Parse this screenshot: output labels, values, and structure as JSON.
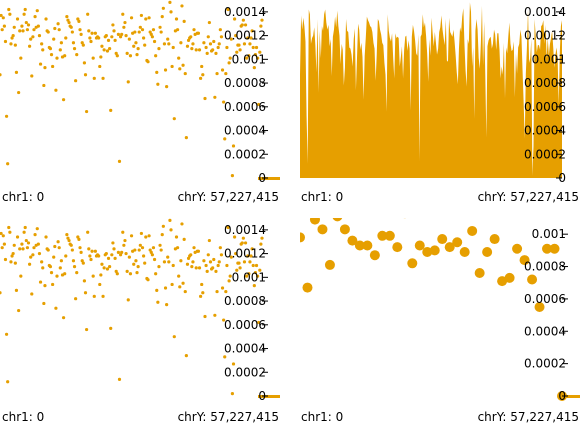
{
  "color": "#e69f00",
  "panels": [
    {
      "id": "top-left",
      "xlabel_left": "chr1: 0",
      "xlabel_right": "chrY: 57,227,415",
      "chart_data": {
        "type": "scatter",
        "marker": "small-dot",
        "ylim": [
          0,
          0.0015
        ],
        "yticks": [
          0,
          0.0002,
          0.0004,
          0.0006,
          0.0008,
          0.001,
          0.0012,
          0.0014
        ],
        "ytick_labels": [
          "0",
          "0.0002",
          "0.0004",
          "0.0006",
          "0.0008",
          "0.001",
          "0.0012",
          "0.0014"
        ],
        "values": [
          0.00087,
          0.00137,
          0.00125,
          0.00135,
          0.00128,
          0.00115,
          0.00052,
          0.00012,
          0.00142,
          0.00138,
          0.00113,
          0.00118,
          0.0012,
          0.00127,
          0.00112,
          0.00089,
          0.00134,
          0.00072,
          0.00124,
          0.00101,
          0.00128,
          0.00124,
          0.00138,
          0.00142,
          0.00131,
          0.00125,
          0.00129,
          0.00111,
          0.00117,
          0.00086,
          0.00119,
          0.00125,
          0.00136,
          0.00127,
          0.00141,
          0.00128,
          0.0012,
          0.00096,
          0.00113,
          0.00108,
          0.00078,
          0.00093,
          0.00134,
          0.00124,
          0.00123,
          0.0011,
          0.00109,
          0.00104,
          0.00094,
          0.00117,
          0.00126,
          0.00074,
          0.00101,
          0.0013,
          0.00125,
          0.00108,
          0.00114,
          0.00102,
          0.00066,
          0.00103,
          0.00118,
          0.00136,
          0.00133,
          0.00131,
          0.00128,
          0.00127,
          0.00123,
          0.00114,
          0.00109,
          0.00082,
          0.00104,
          0.00134,
          0.00132,
          0.00125,
          0.00121,
          0.00114,
          0.00112,
          0.00097,
          0.00087,
          0.00056,
          0.00138,
          0.00124,
          0.00118,
          0.00115,
          0.00122,
          0.00101,
          0.00084,
          0.00122,
          0.00118,
          0.00119,
          0.00118,
          0.00094,
          0.00102,
          0.00111,
          0.00084,
          0.00108,
          0.00119,
          0.0012,
          0.00107,
          0.00116,
          0.00109,
          0.00057,
          0.00119,
          0.00129,
          0.00124,
          0.00116,
          0.00105,
          0.00103,
          0.00121,
          0.00014,
          0.00119,
          0.00121,
          0.00138,
          0.00127,
          0.00131,
          0.0012,
          0.00105,
          0.00081,
          0.00117,
          0.00103,
          0.00135,
          0.00122,
          0.00111,
          0.00123,
          0.00114,
          0.00104,
          0.00109,
          0.00123,
          0.00127,
          0.00137,
          0.00125,
          0.00118,
          0.00112,
          0.00134,
          0.00099,
          0.00098,
          0.00135,
          0.00123,
          0.00121,
          0.00119,
          0.00125,
          0.00115,
          0.00103,
          0.00089,
          0.00079,
          0.00109,
          0.00127,
          0.00123,
          0.00136,
          0.00143,
          0.00113,
          0.00091,
          0.00077,
          0.00117,
          0.00113,
          0.00148,
          0.0014,
          0.00094,
          0.0011,
          0.0005,
          0.00124,
          0.00134,
          0.00125,
          0.00101,
          0.00092,
          0.00114,
          0.00145,
          0.00095,
          0.00132,
          0.00088,
          0.00034,
          0.00111,
          0.00116,
          0.00118,
          0.00119,
          0.00109,
          0.00113,
          0.00125,
          0.00121,
          0.00108,
          0.00122,
          0.00122,
          0.00108,
          0.00084,
          0.00094,
          0.00087,
          0.00114,
          0.00067,
          0.0011,
          0.00105,
          0.00119,
          0.00131,
          0.00113,
          0.00107,
          0.00108,
          0.00115,
          0.00068,
          0.00105,
          0.00088,
          0.0011,
          0.00113,
          0.00125,
          0.00119,
          0.00091,
          0.00064,
          0.00033,
          0.00088,
          0.0011,
          0.00142,
          0.00097,
          0.00101,
          0.00117,
          2e-05,
          0.00027,
          0.00134,
          0.0012,
          0.00106,
          0.00112,
          0.00112,
          0.00108,
          0.00128,
          0.00129,
          0.00133,
          0.00113,
          0.00129,
          0.00101,
          0.00118,
          0.00103,
          0.00113,
          0.00118,
          0.00124,
          0.0011,
          0.00093,
          0.00104,
          0.0011,
          0.00101,
          0.00062,
          0.00106,
          0.00128,
          0.00133
        ]
      }
    },
    {
      "id": "top-right",
      "xlabel_left": "chr1: 0",
      "xlabel_right": "chrY: 57,227,415",
      "chart_data": {
        "type": "area",
        "ylim": [
          0,
          0.0015
        ],
        "yticks": [
          0,
          0.0002,
          0.0004,
          0.0006,
          0.0008,
          0.001,
          0.0012,
          0.0014
        ],
        "ytick_labels": [
          "0",
          "0.0002",
          "0.0004",
          "0.0006",
          "0.0008",
          "0.001",
          "0.0012",
          "0.0014"
        ],
        "values": [
          0.00087,
          0.00137,
          0.00125,
          0.00135,
          0.00128,
          0.00115,
          0.00052,
          0.00012,
          0.00142,
          0.00138,
          0.00113,
          0.00118,
          0.0012,
          0.00127,
          0.00112,
          0.00089,
          0.00134,
          0.00072,
          0.00124,
          0.00101,
          0.00128,
          0.00124,
          0.00138,
          0.00142,
          0.00131,
          0.00125,
          0.00129,
          0.00111,
          0.00117,
          0.00086,
          0.00119,
          0.00125,
          0.00136,
          0.00127,
          0.00141,
          0.00128,
          0.0012,
          0.00096,
          0.00113,
          0.00108,
          0.00078,
          0.00093,
          0.00134,
          0.00124,
          0.00123,
          0.0011,
          0.00109,
          0.00104,
          0.00094,
          0.00117,
          0.00126,
          0.00074,
          0.00101,
          0.0013,
          0.00125,
          0.00108,
          0.00114,
          0.00102,
          0.00066,
          0.00103,
          0.00118,
          0.00136,
          0.00133,
          0.00131,
          0.00128,
          0.00127,
          0.00123,
          0.00114,
          0.00109,
          0.00082,
          0.00104,
          0.00134,
          0.00132,
          0.00125,
          0.00121,
          0.00114,
          0.00112,
          0.00097,
          0.00087,
          0.00056,
          0.00138,
          0.00124,
          0.00118,
          0.00115,
          0.00122,
          0.00101,
          0.00084,
          0.00122,
          0.00118,
          0.00119,
          0.00118,
          0.00094,
          0.00102,
          0.00111,
          0.00084,
          0.00108,
          0.00119,
          0.0012,
          0.00107,
          0.00116,
          0.00109,
          0.00057,
          0.00119,
          0.00129,
          0.00124,
          0.00116,
          0.00105,
          0.00103,
          0.00121,
          0.00014,
          0.00119,
          0.00121,
          0.00138,
          0.00127,
          0.00131,
          0.0012,
          0.00105,
          0.00081,
          0.00117,
          0.00103,
          0.00135,
          0.00122,
          0.00111,
          0.00123,
          0.00114,
          0.00104,
          0.00109,
          0.00123,
          0.00127,
          0.00137,
          0.00125,
          0.00118,
          0.00112,
          0.00134,
          0.00099,
          0.00098,
          0.00135,
          0.00123,
          0.00121,
          0.00119,
          0.00125,
          0.00115,
          0.00103,
          0.00089,
          0.00079,
          0.00109,
          0.00127,
          0.00123,
          0.00136,
          0.00143,
          0.00113,
          0.00091,
          0.00077,
          0.00117,
          0.00113,
          0.00148,
          0.0014,
          0.00094,
          0.0011,
          0.0005,
          0.00124,
          0.00134,
          0.00125,
          0.00101,
          0.00092,
          0.00114,
          0.00145,
          0.00095,
          0.00132,
          0.00088,
          0.00034,
          0.00111,
          0.00116,
          0.00118,
          0.00119,
          0.00109,
          0.00113,
          0.00125,
          0.00121,
          0.00108,
          0.00122,
          0.00122,
          0.00108,
          0.00084,
          0.00094,
          0.00087,
          0.00114,
          0.00067,
          0.0011,
          0.00105,
          0.00119,
          0.00131,
          0.00113,
          0.00107,
          0.00108,
          0.00115,
          0.00068,
          0.00105,
          0.00088,
          0.0011,
          0.00113,
          0.00125,
          0.00119,
          0.00091,
          0.00064,
          0.00033,
          0.00088,
          0.0011,
          0.00142,
          0.00097,
          0.00101,
          0.00117,
          2e-05,
          0.00027,
          0.00134,
          0.0012,
          0.00106,
          0.00112,
          0.00112,
          0.00108,
          0.00128,
          0.00129,
          0.00133,
          0.00113,
          0.00129,
          0.00101,
          0.00118,
          0.00103,
          0.00113,
          0.00118,
          0.00124,
          0.0011,
          0.00093,
          0.00104,
          0.0011,
          0.00101,
          0.00062,
          0.00106,
          0.00128,
          0.00133
        ]
      }
    },
    {
      "id": "bottom-left",
      "xlabel_left": "chr1: 0",
      "xlabel_right": "chrY: 57,227,415",
      "chart_data": {
        "type": "scatter",
        "marker": "small-dot",
        "ylim": [
          0,
          0.0015
        ],
        "yticks": [
          0,
          0.0002,
          0.0004,
          0.0006,
          0.0008,
          0.001,
          0.0012,
          0.0014
        ],
        "ytick_labels": [
          "0",
          "0.0002",
          "0.0004",
          "0.0006",
          "0.0008",
          "0.001",
          "0.0012",
          "0.0014"
        ],
        "values": [
          0.00087,
          0.00137,
          0.00125,
          0.00135,
          0.00128,
          0.00115,
          0.00052,
          0.00012,
          0.00142,
          0.00138,
          0.00113,
          0.00118,
          0.0012,
          0.00127,
          0.00112,
          0.00089,
          0.00134,
          0.00072,
          0.00124,
          0.00101,
          0.00128,
          0.00124,
          0.00138,
          0.00142,
          0.00131,
          0.00125,
          0.00129,
          0.00111,
          0.00117,
          0.00086,
          0.00119,
          0.00125,
          0.00136,
          0.00127,
          0.00141,
          0.00128,
          0.0012,
          0.00096,
          0.00113,
          0.00108,
          0.00078,
          0.00093,
          0.00134,
          0.00124,
          0.00123,
          0.0011,
          0.00109,
          0.00104,
          0.00094,
          0.00117,
          0.00126,
          0.00074,
          0.00101,
          0.0013,
          0.00125,
          0.00108,
          0.00114,
          0.00102,
          0.00066,
          0.00103,
          0.00118,
          0.00136,
          0.00133,
          0.00131,
          0.00128,
          0.00127,
          0.00123,
          0.00114,
          0.00109,
          0.00082,
          0.00104,
          0.00134,
          0.00132,
          0.00125,
          0.00121,
          0.00114,
          0.00112,
          0.00097,
          0.00087,
          0.00056,
          0.00138,
          0.00124,
          0.00118,
          0.00115,
          0.00122,
          0.00101,
          0.00084,
          0.00122,
          0.00118,
          0.00119,
          0.00118,
          0.00094,
          0.00102,
          0.00111,
          0.00084,
          0.00108,
          0.00119,
          0.0012,
          0.00107,
          0.00116,
          0.00109,
          0.00057,
          0.00119,
          0.00129,
          0.00124,
          0.00116,
          0.00105,
          0.00103,
          0.00121,
          0.00014,
          0.00119,
          0.00121,
          0.00138,
          0.00127,
          0.00131,
          0.0012,
          0.00105,
          0.00081,
          0.00117,
          0.00103,
          0.00135,
          0.00122,
          0.00111,
          0.00123,
          0.00114,
          0.00104,
          0.00109,
          0.00123,
          0.00127,
          0.00137,
          0.00125,
          0.00118,
          0.00112,
          0.00134,
          0.00099,
          0.00098,
          0.00135,
          0.00123,
          0.00121,
          0.00119,
          0.00125,
          0.00115,
          0.00103,
          0.00089,
          0.00079,
          0.00109,
          0.00127,
          0.00123,
          0.00136,
          0.00143,
          0.00113,
          0.00091,
          0.00077,
          0.00117,
          0.00113,
          0.00148,
          0.0014,
          0.00094,
          0.0011,
          0.0005,
          0.00124,
          0.00134,
          0.00125,
          0.00101,
          0.00092,
          0.00114,
          0.00145,
          0.00095,
          0.00132,
          0.00088,
          0.00034,
          0.00111,
          0.00116,
          0.00118,
          0.00119,
          0.00109,
          0.00113,
          0.00125,
          0.00121,
          0.00108,
          0.00122,
          0.00122,
          0.00108,
          0.00084,
          0.00094,
          0.00087,
          0.00114,
          0.00067,
          0.0011,
          0.00105,
          0.00119,
          0.00131,
          0.00113,
          0.00107,
          0.00108,
          0.00115,
          0.00068,
          0.00105,
          0.00088,
          0.0011,
          0.00113,
          0.00125,
          0.00119,
          0.00091,
          0.00064,
          0.00033,
          0.00088,
          0.0011,
          0.00142,
          0.00097,
          0.00101,
          0.00117,
          2e-05,
          0.00027,
          0.00134,
          0.0012,
          0.00106,
          0.00112,
          0.00112,
          0.00108,
          0.00128,
          0.00129,
          0.00133,
          0.00113,
          0.00129,
          0.00101,
          0.00118,
          0.00103,
          0.00113,
          0.00118,
          0.00124,
          0.0011,
          0.00093,
          0.00104,
          0.0011,
          0.00101,
          0.00062,
          0.00106,
          0.00128,
          0.00133
        ]
      }
    },
    {
      "id": "bottom-right",
      "xlabel_left": "chr1: 0",
      "xlabel_right": "chrY: 57,227,415",
      "chart_data": {
        "type": "scatter",
        "marker": "large-dot",
        "ylim": [
          0,
          0.0011
        ],
        "yticks": [
          0,
          0.0002,
          0.0004,
          0.0006,
          0.0008,
          0.001
        ],
        "ytick_labels": [
          "0",
          "0.0002",
          "0.0004",
          "0.0006",
          "0.0008",
          "0.001"
        ],
        "values": [
          0.00098,
          0.00067,
          0.00109,
          0.00103,
          0.00081,
          0.00111,
          0.00103,
          0.00096,
          0.00093,
          0.00093,
          0.00087,
          0.00099,
          0.00099,
          0.00092,
          0.00113,
          0.00082,
          0.00093,
          0.00089,
          0.0009,
          0.00097,
          0.00092,
          0.00095,
          0.00089,
          0.00102,
          0.00076,
          0.00089,
          0.00097,
          0.00071,
          0.00073,
          0.00091,
          0.00084,
          0.00072,
          0.00055,
          0.00091,
          0.00091,
          0.0
        ]
      }
    }
  ]
}
